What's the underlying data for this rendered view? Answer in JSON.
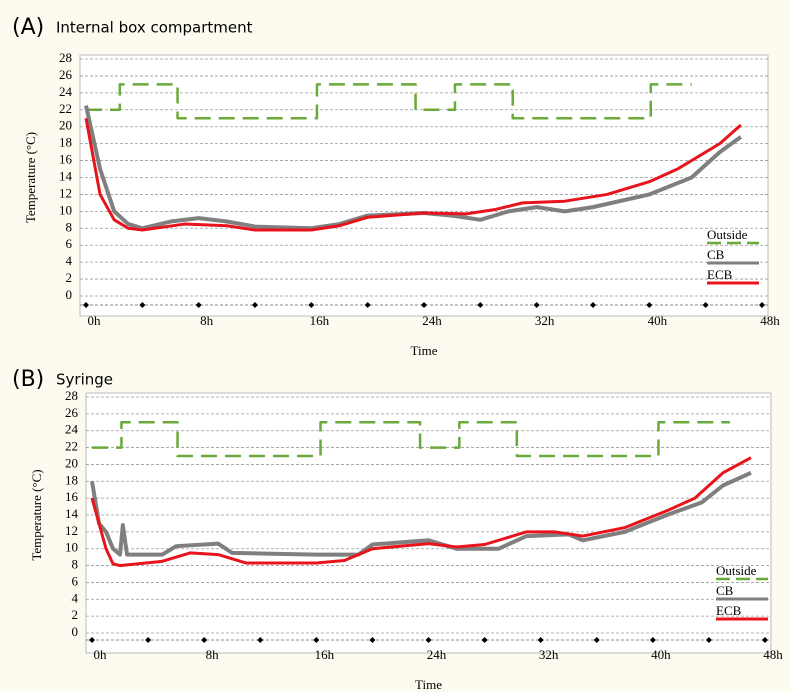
{
  "chart_data": [
    {
      "type": "line",
      "panel_label": "(A)",
      "title": "Internal box compartment",
      "ylabel": "Temperature (°C)",
      "xlabel": "Time",
      "xlim": [
        0,
        48
      ],
      "ylim": [
        0,
        28
      ],
      "xticks": [
        {
          "value": 0,
          "label": "0h"
        },
        {
          "value": 8,
          "label": "8h"
        },
        {
          "value": 16,
          "label": "16h"
        },
        {
          "value": 24,
          "label": "24h"
        },
        {
          "value": 32,
          "label": "32h"
        },
        {
          "value": 40,
          "label": "40h"
        },
        {
          "value": 48,
          "label": "48h"
        }
      ],
      "xminor_ticks": [
        4,
        12,
        20,
        28,
        36,
        44
      ],
      "yticks": [
        0,
        2,
        4,
        6,
        8,
        10,
        12,
        14,
        16,
        18,
        20,
        22,
        24,
        26,
        28
      ],
      "grid": true,
      "legend": "lower right",
      "series": [
        {
          "name": "Outside",
          "color": "#6aaa3a",
          "dashed": true,
          "x": [
            0,
            2.4,
            2.4,
            6.5,
            6.5,
            16.4,
            16.4,
            23.4,
            23.4,
            26.2,
            26.2,
            30.3,
            30.3,
            40.1,
            40.1,
            43
          ],
          "values": [
            22,
            22,
            25,
            25,
            21,
            21,
            25,
            25,
            22,
            22,
            25,
            25,
            21,
            21,
            25,
            25
          ]
        },
        {
          "name": "CB",
          "color": "#7f7f7f",
          "dashed": false,
          "x": [
            0,
            1,
            2,
            3,
            4,
            6,
            8,
            10,
            12,
            16,
            18,
            20,
            24,
            26,
            28,
            30,
            32,
            34,
            36,
            40,
            43,
            45,
            46.5
          ],
          "values": [
            22.5,
            15,
            10,
            8.5,
            8,
            8.8,
            9.2,
            8.8,
            8.2,
            8,
            8.5,
            9.5,
            9.8,
            9.5,
            9,
            10,
            10.5,
            10,
            10.5,
            12,
            14,
            17,
            18.8
          ]
        },
        {
          "name": "ECB",
          "color": "#e8141b",
          "dashed": false,
          "x": [
            0,
            1,
            2,
            3,
            4,
            7,
            10,
            12,
            16,
            18,
            20,
            24,
            27,
            29,
            31,
            34,
            37,
            40,
            42,
            45,
            46.5
          ],
          "values": [
            21,
            12,
            9,
            8,
            7.8,
            8.5,
            8.3,
            7.8,
            7.8,
            8.3,
            9.3,
            9.8,
            9.7,
            10.2,
            11,
            11.2,
            12,
            13.5,
            15,
            18,
            20.2
          ]
        }
      ]
    },
    {
      "type": "line",
      "panel_label": "(B)",
      "title": "Syringe",
      "ylabel": "Temperature (°C)",
      "xlabel": "Time",
      "xlim": [
        0,
        48
      ],
      "ylim": [
        0,
        28
      ],
      "xticks": [
        {
          "value": 0,
          "label": "0h"
        },
        {
          "value": 8,
          "label": "8h"
        },
        {
          "value": 16,
          "label": "16h"
        },
        {
          "value": 24,
          "label": "24h"
        },
        {
          "value": 32,
          "label": "32h"
        },
        {
          "value": 40,
          "label": "40h"
        },
        {
          "value": 48,
          "label": "48h"
        }
      ],
      "xminor_ticks": [
        4,
        12,
        20,
        28,
        36,
        44
      ],
      "yticks": [
        0,
        2,
        4,
        6,
        8,
        10,
        12,
        14,
        16,
        18,
        20,
        22,
        24,
        26,
        28
      ],
      "grid": true,
      "legend": "lower right",
      "series": [
        {
          "name": "Outside",
          "color": "#6aaa3a",
          "dashed": true,
          "x": [
            0,
            2.1,
            2.1,
            6.1,
            6.1,
            16.3,
            16.3,
            23.4,
            23.4,
            26.2,
            26.2,
            30.3,
            30.3,
            40.4,
            40.4,
            45.5
          ],
          "values": [
            22,
            22,
            25,
            25,
            21,
            21,
            25,
            25,
            22,
            22,
            25,
            25,
            21,
            21,
            25,
            25
          ]
        },
        {
          "name": "CB",
          "color": "#7f7f7f",
          "dashed": false,
          "x": [
            0,
            0.5,
            1,
            1.5,
            2,
            2.2,
            2.5,
            5,
            6,
            9,
            10,
            16,
            19,
            20,
            24,
            26,
            29,
            31,
            34,
            35,
            38,
            41,
            43.5,
            45,
            47
          ],
          "values": [
            18,
            13,
            12,
            10,
            9.3,
            12.8,
            9.3,
            9.3,
            10.3,
            10.6,
            9.5,
            9.3,
            9.3,
            10.5,
            11,
            10,
            10,
            11.5,
            11.7,
            11,
            12,
            14,
            15.5,
            17.5,
            19
          ]
        },
        {
          "name": "ECB",
          "color": "#e8141b",
          "dashed": false,
          "x": [
            0,
            1,
            1.5,
            2,
            5,
            7,
            9,
            11,
            16,
            18,
            20,
            24,
            26,
            28,
            31,
            33,
            35,
            38,
            41,
            43,
            45,
            47
          ],
          "values": [
            16,
            10,
            8.2,
            8,
            8.5,
            9.5,
            9.3,
            8.3,
            8.3,
            8.6,
            10,
            10.6,
            10.2,
            10.5,
            12,
            12,
            11.5,
            12.5,
            14.5,
            16,
            19,
            20.8
          ]
        }
      ]
    }
  ]
}
